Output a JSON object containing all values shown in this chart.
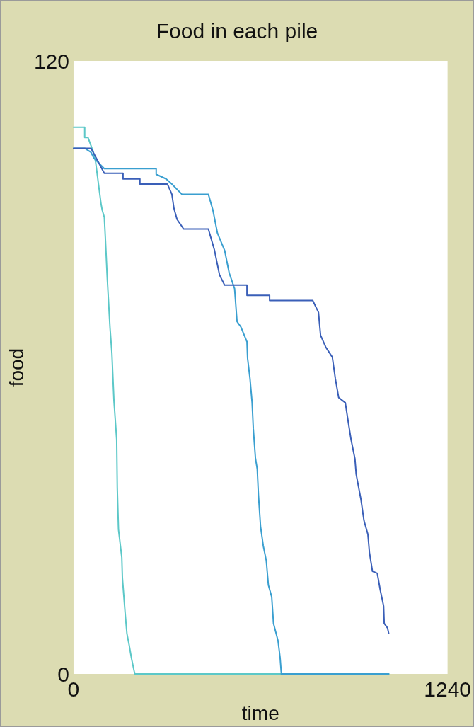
{
  "chart_data": {
    "type": "line",
    "title": "Food in each pile",
    "xlabel": "time",
    "ylabel": "food",
    "xlim": [
      0,
      1240
    ],
    "xticks": [
      0,
      1240
    ],
    "ylim": [
      0,
      120
    ],
    "yticks": [
      0,
      120
    ],
    "grid": false,
    "marker": "none",
    "line_style": "solid",
    "series": [
      {
        "color": "#5cc8c8",
        "x": [
          0,
          37,
          37,
          48,
          56,
          65,
          73,
          82,
          91,
          95,
          102,
          106,
          112,
          121,
          127,
          134,
          143,
          145,
          149,
          160,
          162,
          171,
          177,
          184,
          192,
          199,
          203,
          1045
        ],
        "values": [
          107.0,
          107.0,
          105.0,
          105.0,
          103.7,
          102.3,
          100.3,
          96.2,
          92.1,
          90.8,
          89.4,
          84.7,
          77.2,
          67.7,
          62.9,
          53.4,
          45.9,
          36.4,
          28.3,
          22.8,
          18.8,
          12.0,
          7.9,
          5.8,
          3.1,
          1.1,
          0,
          0
        ]
      },
      {
        "color": "#3a9fd0",
        "x": [
          0,
          37,
          58,
          67,
          102,
          274,
          274,
          307,
          326,
          359,
          447,
          462,
          477,
          501,
          516,
          534,
          542,
          555,
          575,
          577,
          585,
          592,
          596,
          603,
          609,
          613,
          620,
          629,
          639,
          646,
          657,
          663,
          678,
          685,
          689,
          1045
        ],
        "values": [
          102.9,
          102.9,
          102.1,
          101.0,
          98.9,
          98.9,
          97.8,
          96.9,
          95.9,
          93.9,
          93.9,
          90.8,
          86.3,
          82.9,
          78.5,
          75.4,
          69.0,
          67.9,
          65.0,
          61.8,
          57.8,
          53.1,
          48.0,
          42.3,
          40.1,
          35.1,
          28.9,
          25.1,
          22.2,
          17.4,
          15.1,
          9.9,
          6.5,
          3.1,
          0,
          0
        ]
      },
      {
        "color": "#3a5fb8",
        "x": [
          0,
          58,
          102,
          164,
          164,
          220,
          220,
          311,
          326,
          333,
          343,
          365,
          447,
          467,
          484,
          501,
          575,
          575,
          650,
          650,
          793,
          812,
          819,
          836,
          858,
          868,
          879,
          901,
          909,
          920,
          933,
          937,
          953,
          963,
          976,
          981,
          991,
          1007,
          1017,
          1028,
          1030,
          1041,
          1045
        ],
        "values": [
          102.9,
          102.9,
          98.0,
          98.0,
          96.9,
          96.9,
          95.9,
          95.9,
          93.9,
          91.1,
          89.0,
          87.1,
          87.1,
          83.0,
          78.1,
          76.1,
          76.1,
          74.1,
          74.1,
          73.1,
          73.1,
          70.8,
          66.3,
          64.0,
          62.0,
          57.8,
          54.1,
          53.1,
          50.0,
          45.9,
          42.1,
          39.1,
          34.1,
          30.0,
          27.3,
          23.8,
          20.1,
          19.7,
          16.4,
          13.3,
          9.9,
          9.0,
          7.9
        ]
      }
    ]
  }
}
